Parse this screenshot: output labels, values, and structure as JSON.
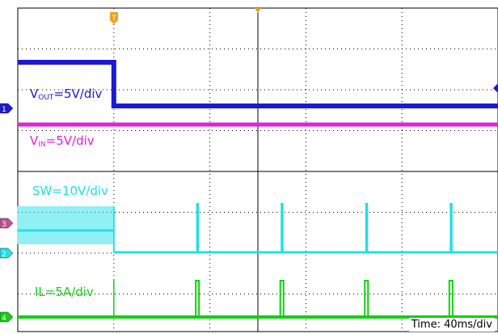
{
  "chart_data": {
    "type": "line",
    "grid": true,
    "time_per_div": "40ms/div",
    "trigger_marker": "T",
    "channels": [
      {
        "name": "VOUT",
        "label_main": "V",
        "label_sub": "OUT",
        "label_scale": "=5V/div",
        "ground_marker": "1",
        "color": "#1a1ad6"
      },
      {
        "name": "VIN",
        "label_main": "V",
        "label_sub": "IN",
        "label_scale": "=5V/div",
        "color": "#e020e0"
      },
      {
        "name": "SW",
        "label_main": "SW=10V/div",
        "ground_marker": "3",
        "color": "#20e0e8"
      },
      {
        "name": "IL",
        "label_main": "IL=5A/div",
        "ground_marker": "4",
        "color": "#10d010"
      }
    ],
    "extra_markers": [
      "2"
    ],
    "events": {
      "output_disabled_at_div": 1.0,
      "burst_pulses_at_div": [
        1.87,
        2.75,
        3.63,
        4.51
      ]
    }
  },
  "time_readout": {
    "label": "Time: 40ms/div"
  }
}
